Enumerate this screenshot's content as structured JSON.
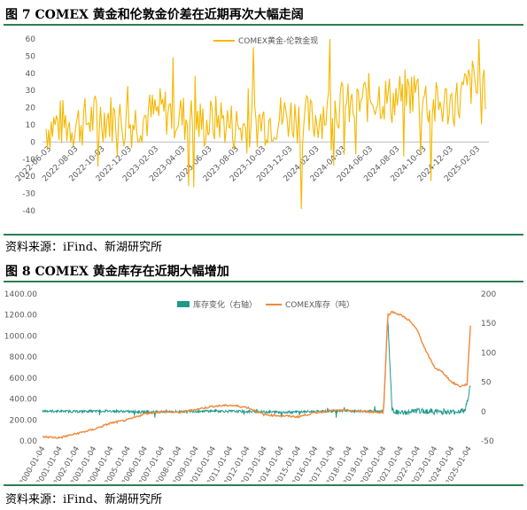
{
  "figure1": {
    "title": "图  7 COMEX 黄金和伦敦金价差在近期再次大幅走阔",
    "source": "资料来源：iFind、新湖研究所"
  },
  "figure2": {
    "title": "图  8 COMEX 黄金库存在近期大幅增加",
    "source": "资料来源：iFind、新湖研究所"
  },
  "chart_data": [
    {
      "type": "line",
      "legend": [
        "COMEX黄金-伦敦金现"
      ],
      "legend_position": "top-center",
      "grid": false,
      "ylim": [
        -40,
        60
      ],
      "yticks": [
        -40,
        -30,
        -20,
        -10,
        0,
        10,
        20,
        30,
        40,
        50,
        60
      ],
      "xticks": [
        "2022-06-03",
        "2022-08-03",
        "2022-10-03",
        "2022-12-03",
        "2023-02-03",
        "2023-04-03",
        "2023-06-03",
        "2023-08-03",
        "2023-10-03",
        "2023-12-03",
        "2024-02-03",
        "2024-04-03",
        "2024-06-03",
        "2024-08-03",
        "2024-10-03",
        "2024-12-03",
        "2025-02-03"
      ],
      "series": [
        {
          "name": "COMEX黄金-伦敦金现",
          "color": "#f5b800",
          "x": [
            "2022-06",
            "2022-07",
            "2022-08",
            "2022-09",
            "2022-10",
            "2022-11",
            "2022-12",
            "2023-01",
            "2023-02",
            "2023-03",
            "2023-04",
            "2023-05",
            "2023-06",
            "2023-07",
            "2023-08",
            "2023-09",
            "2023-10",
            "2023-11",
            "2023-12",
            "2024-01",
            "2024-02",
            "2024-03",
            "2024-04",
            "2024-05",
            "2024-06",
            "2024-07",
            "2024-08",
            "2024-09",
            "2024-10",
            "2024-11",
            "2024-12",
            "2025-01",
            "2025-02",
            "2025-03"
          ],
          "values": [
            8,
            11,
            10,
            12,
            15,
            14,
            10,
            13,
            16,
            18,
            15,
            12,
            10,
            14,
            9,
            8,
            12,
            13,
            15,
            14,
            12,
            18,
            22,
            19,
            25,
            27,
            24,
            28,
            30,
            20,
            22,
            24,
            35,
            20
          ],
          "max": 60,
          "min": -39
        }
      ]
    },
    {
      "type": "line",
      "legend": [
        "库存变化（右轴）",
        "COMEX库存（吨）"
      ],
      "legend_position": "top-center",
      "grid": false,
      "ylim_left": [
        0,
        1400
      ],
      "yticks_left": [
        "0.00",
        "200.00",
        "400.00",
        "600.00",
        "800.00",
        "1000.00",
        "1200.00",
        "1400.00"
      ],
      "ylim_right": [
        -50,
        200
      ],
      "yticks_right": [
        "-50",
        "0",
        "50",
        "100",
        "150",
        "200"
      ],
      "xticks": [
        "2000-01-04",
        "2001-01-04",
        "2002-01-04",
        "2003-01-04",
        "2004-01-04",
        "2005-01-04",
        "2006-01-04",
        "2007-01-04",
        "2008-01-04",
        "2009-01-04",
        "2010-01-04",
        "2011-01-04",
        "2012-01-04",
        "2013-01-04",
        "2014-01-04",
        "2015-01-04",
        "2016-01-04",
        "2017-01-04",
        "2018-01-04",
        "2019-01-04",
        "2020-01-04",
        "2021-01-04",
        "2022-01-04",
        "2023-01-04",
        "2024-01-04",
        "2025-01-04"
      ],
      "series": [
        {
          "name": "COMEX库存（吨）",
          "axis": "left",
          "color": "#f0883a",
          "x": [
            2000.0,
            2001.0,
            2002.0,
            2003.0,
            2004.0,
            2005.0,
            2006.0,
            2007.0,
            2008.0,
            2009.0,
            2010.0,
            2011.0,
            2012.0,
            2013.0,
            2014.0,
            2015.0,
            2016.0,
            2017.0,
            2018.0,
            2019.0,
            2020.0,
            2020.25,
            2020.5,
            2021.0,
            2021.5,
            2022.0,
            2022.5,
            2023.0,
            2023.5,
            2024.0,
            2024.5,
            2024.9,
            2025.1
          ],
          "values": [
            40,
            30,
            70,
            110,
            170,
            200,
            260,
            280,
            270,
            300,
            330,
            340,
            320,
            250,
            240,
            230,
            270,
            290,
            290,
            280,
            270,
            1200,
            1230,
            1200,
            1150,
            1050,
            850,
            700,
            650,
            560,
            520,
            540,
            1100
          ]
        },
        {
          "name": "库存变化（右轴）",
          "axis": "right",
          "color": "#1f9a8a",
          "x": [
            2000.0,
            2002.0,
            2004.0,
            2006.0,
            2008.0,
            2010.0,
            2012.0,
            2014.0,
            2016.0,
            2018.0,
            2020.0,
            2020.25,
            2020.5,
            2021.0,
            2022.0,
            2023.0,
            2024.0,
            2024.8,
            2025.1
          ],
          "values": [
            1,
            0,
            1,
            -1,
            0,
            1,
            0,
            -1,
            0,
            1,
            0,
            160,
            2,
            -3,
            1,
            0,
            -1,
            2,
            45
          ]
        }
      ]
    }
  ]
}
